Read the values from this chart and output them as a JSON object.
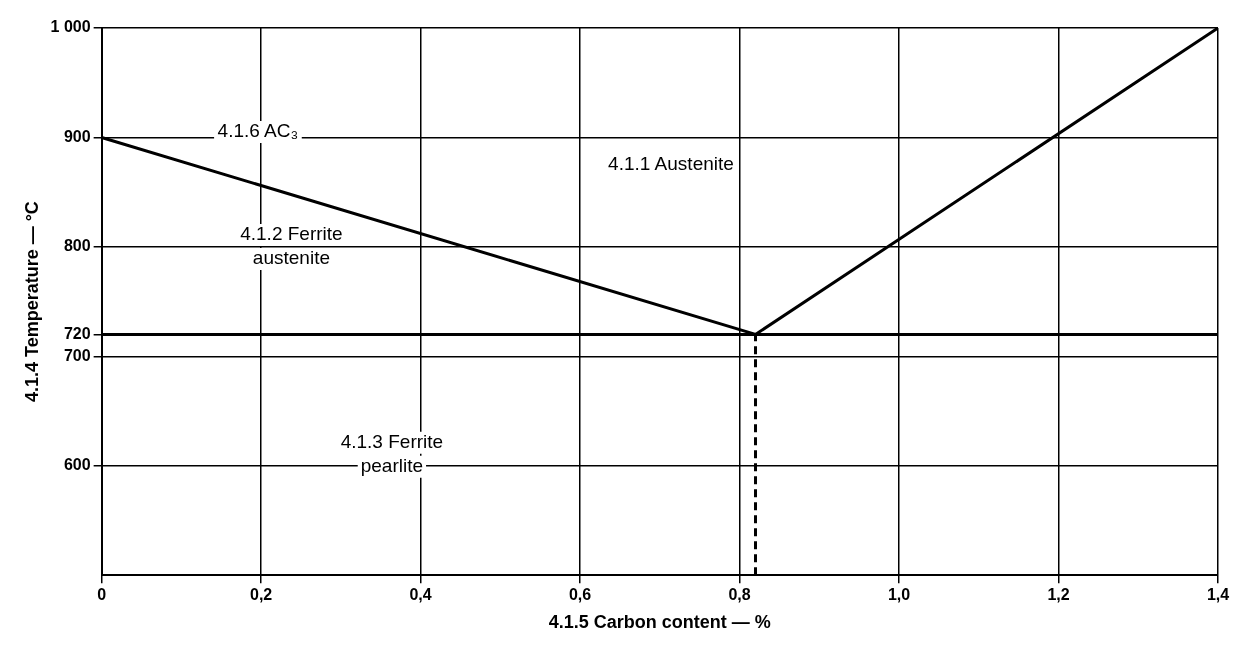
{
  "chart_data": {
    "type": "line",
    "xlabel": "4.1.5 Carbon content — %",
    "ylabel": "4.1.4 Temperature — °C",
    "xlim": [
      0,
      1.4
    ],
    "xticks": [
      0,
      {
        "value": 0.2,
        "label": "0,2"
      },
      {
        "value": 0.4,
        "label": "0,4"
      },
      {
        "value": 0.6,
        "label": "0,6"
      },
      {
        "value": 0.8,
        "label": "0,8"
      },
      {
        "value": 1.0,
        "label": "1,0"
      },
      {
        "value": 1.2,
        "label": "1,2"
      },
      {
        "value": 1.4,
        "label": "1,4"
      }
    ],
    "ylim": [
      500,
      1000
    ],
    "yticks": [
      600,
      700,
      720,
      800,
      900,
      {
        "value": 1000,
        "label": "1 000"
      }
    ],
    "grid": true,
    "marker": "none",
    "series": [
      {
        "color": "#000000",
        "x": [
          0,
          0.82,
          1.4
        ],
        "values": [
          900,
          720,
          1000
        ],
        "line_style": "solid"
      },
      {
        "color": "#000000",
        "x": [
          0.82,
          0.82
        ],
        "values": [
          500,
          720
        ],
        "line_style": "dashed"
      }
    ],
    "ref_lines": [
      {
        "axis": "y",
        "value": 720,
        "color": "#000000"
      }
    ],
    "annotations": [
      "4.1.6 AC₃",
      "4.1.1 Austenite",
      "4.1.2 Ferrite\naustenite",
      "4.1.3 Ferrite\npearlite"
    ]
  }
}
